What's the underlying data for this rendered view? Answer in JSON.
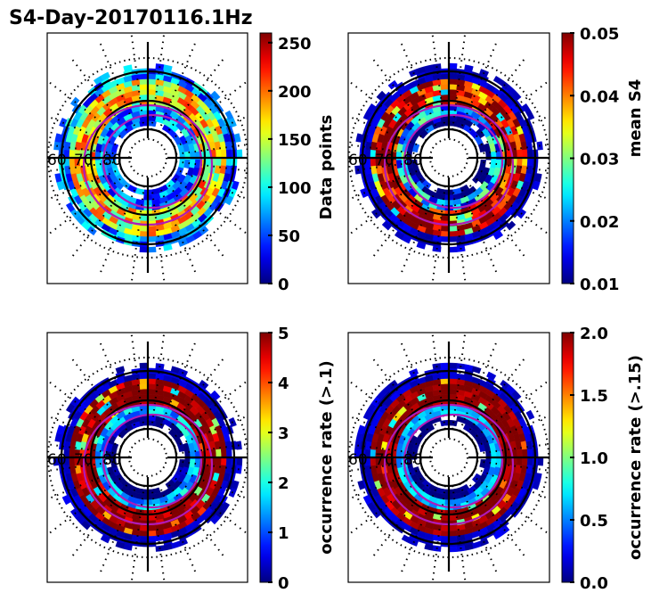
{
  "figure": {
    "title": "S4-Day-20170116.1Hz"
  },
  "chart_data": [
    {
      "type": "heatmap",
      "projection": "polar",
      "panel": "top-left",
      "title": "",
      "colormap": "jet",
      "colorbar": {
        "label": "Data points",
        "vmin": 0,
        "vmax": 260,
        "ticks": [
          0,
          50,
          100,
          150,
          200,
          250
        ],
        "tick_labels": [
          "0",
          "50",
          "100",
          "150",
          "200",
          "250"
        ]
      },
      "latitude_labels": [
        "60",
        "70",
        "80"
      ],
      "latitude_circles": [
        60,
        70,
        80
      ],
      "dotted_rings": 3,
      "meridians_deg": [
        0,
        90,
        180,
        270
      ],
      "overlay": "magenta oval contours (2)",
      "pattern": {
        "seed": 11,
        "outer_level": 0.18,
        "mid_level": 0.55,
        "inner_level": 0.2,
        "noise": 0.35
      }
    },
    {
      "type": "heatmap",
      "projection": "polar",
      "panel": "top-right",
      "colormap": "jet",
      "colorbar": {
        "label": "mean S4",
        "vmin": 0.01,
        "vmax": 0.05,
        "ticks": [
          0.01,
          0.02,
          0.03,
          0.04,
          0.05
        ],
        "tick_labels": [
          "0.01",
          "0.02",
          "0.03",
          "0.04",
          "0.05"
        ]
      },
      "latitude_labels": [
        "60",
        "70",
        "80"
      ],
      "latitude_circles": [
        60,
        70,
        80
      ],
      "dotted_rings": 3,
      "meridians_deg": [
        0,
        90,
        180,
        270
      ],
      "overlay": "magenta oval contours (2)",
      "pattern": {
        "seed": 23,
        "outer_level": 1.0,
        "mid_level": 0.0,
        "inner_level": 0.0,
        "noise": 0.25
      }
    },
    {
      "type": "heatmap",
      "projection": "polar",
      "panel": "bottom-left",
      "colormap": "jet",
      "colorbar": {
        "label": "occurrence rate (>.1)",
        "vmin": 0,
        "vmax": 5,
        "ticks": [
          0,
          1,
          2,
          3,
          4,
          5
        ],
        "tick_labels": [
          "0",
          "1",
          "2",
          "3",
          "4",
          "5"
        ]
      },
      "latitude_labels": [
        "60",
        "70",
        "80"
      ],
      "latitude_circles": [
        60,
        70,
        80
      ],
      "dotted_rings": 3,
      "meridians_deg": [
        0,
        90,
        180,
        270
      ],
      "overlay": "magenta oval contours (2)",
      "pattern": {
        "seed": 37,
        "outer_level": 1.0,
        "mid_level": 0.0,
        "inner_level": 0.0,
        "noise": 0.12
      }
    },
    {
      "type": "heatmap",
      "projection": "polar",
      "panel": "bottom-right",
      "colormap": "jet",
      "colorbar": {
        "label": "occurrence rate (>.15)",
        "vmin": 0.0,
        "vmax": 2.0,
        "ticks": [
          0.0,
          0.5,
          1.0,
          1.5,
          2.0
        ],
        "tick_labels": [
          "0.0",
          "0.5",
          "1.0",
          "1.5",
          "2.0"
        ]
      },
      "latitude_labels": [
        "60",
        "70",
        "80"
      ],
      "latitude_circles": [
        60,
        70,
        80
      ],
      "dotted_rings": 3,
      "meridians_deg": [
        0,
        90,
        180,
        270
      ],
      "overlay": "magenta oval contours (2)",
      "pattern": {
        "seed": 53,
        "outer_level": 1.0,
        "mid_level": 0.0,
        "inner_level": 0.0,
        "noise": 0.08
      }
    }
  ],
  "colors": {
    "overlay_contour": "#b01ab8",
    "grid": "#000000"
  }
}
